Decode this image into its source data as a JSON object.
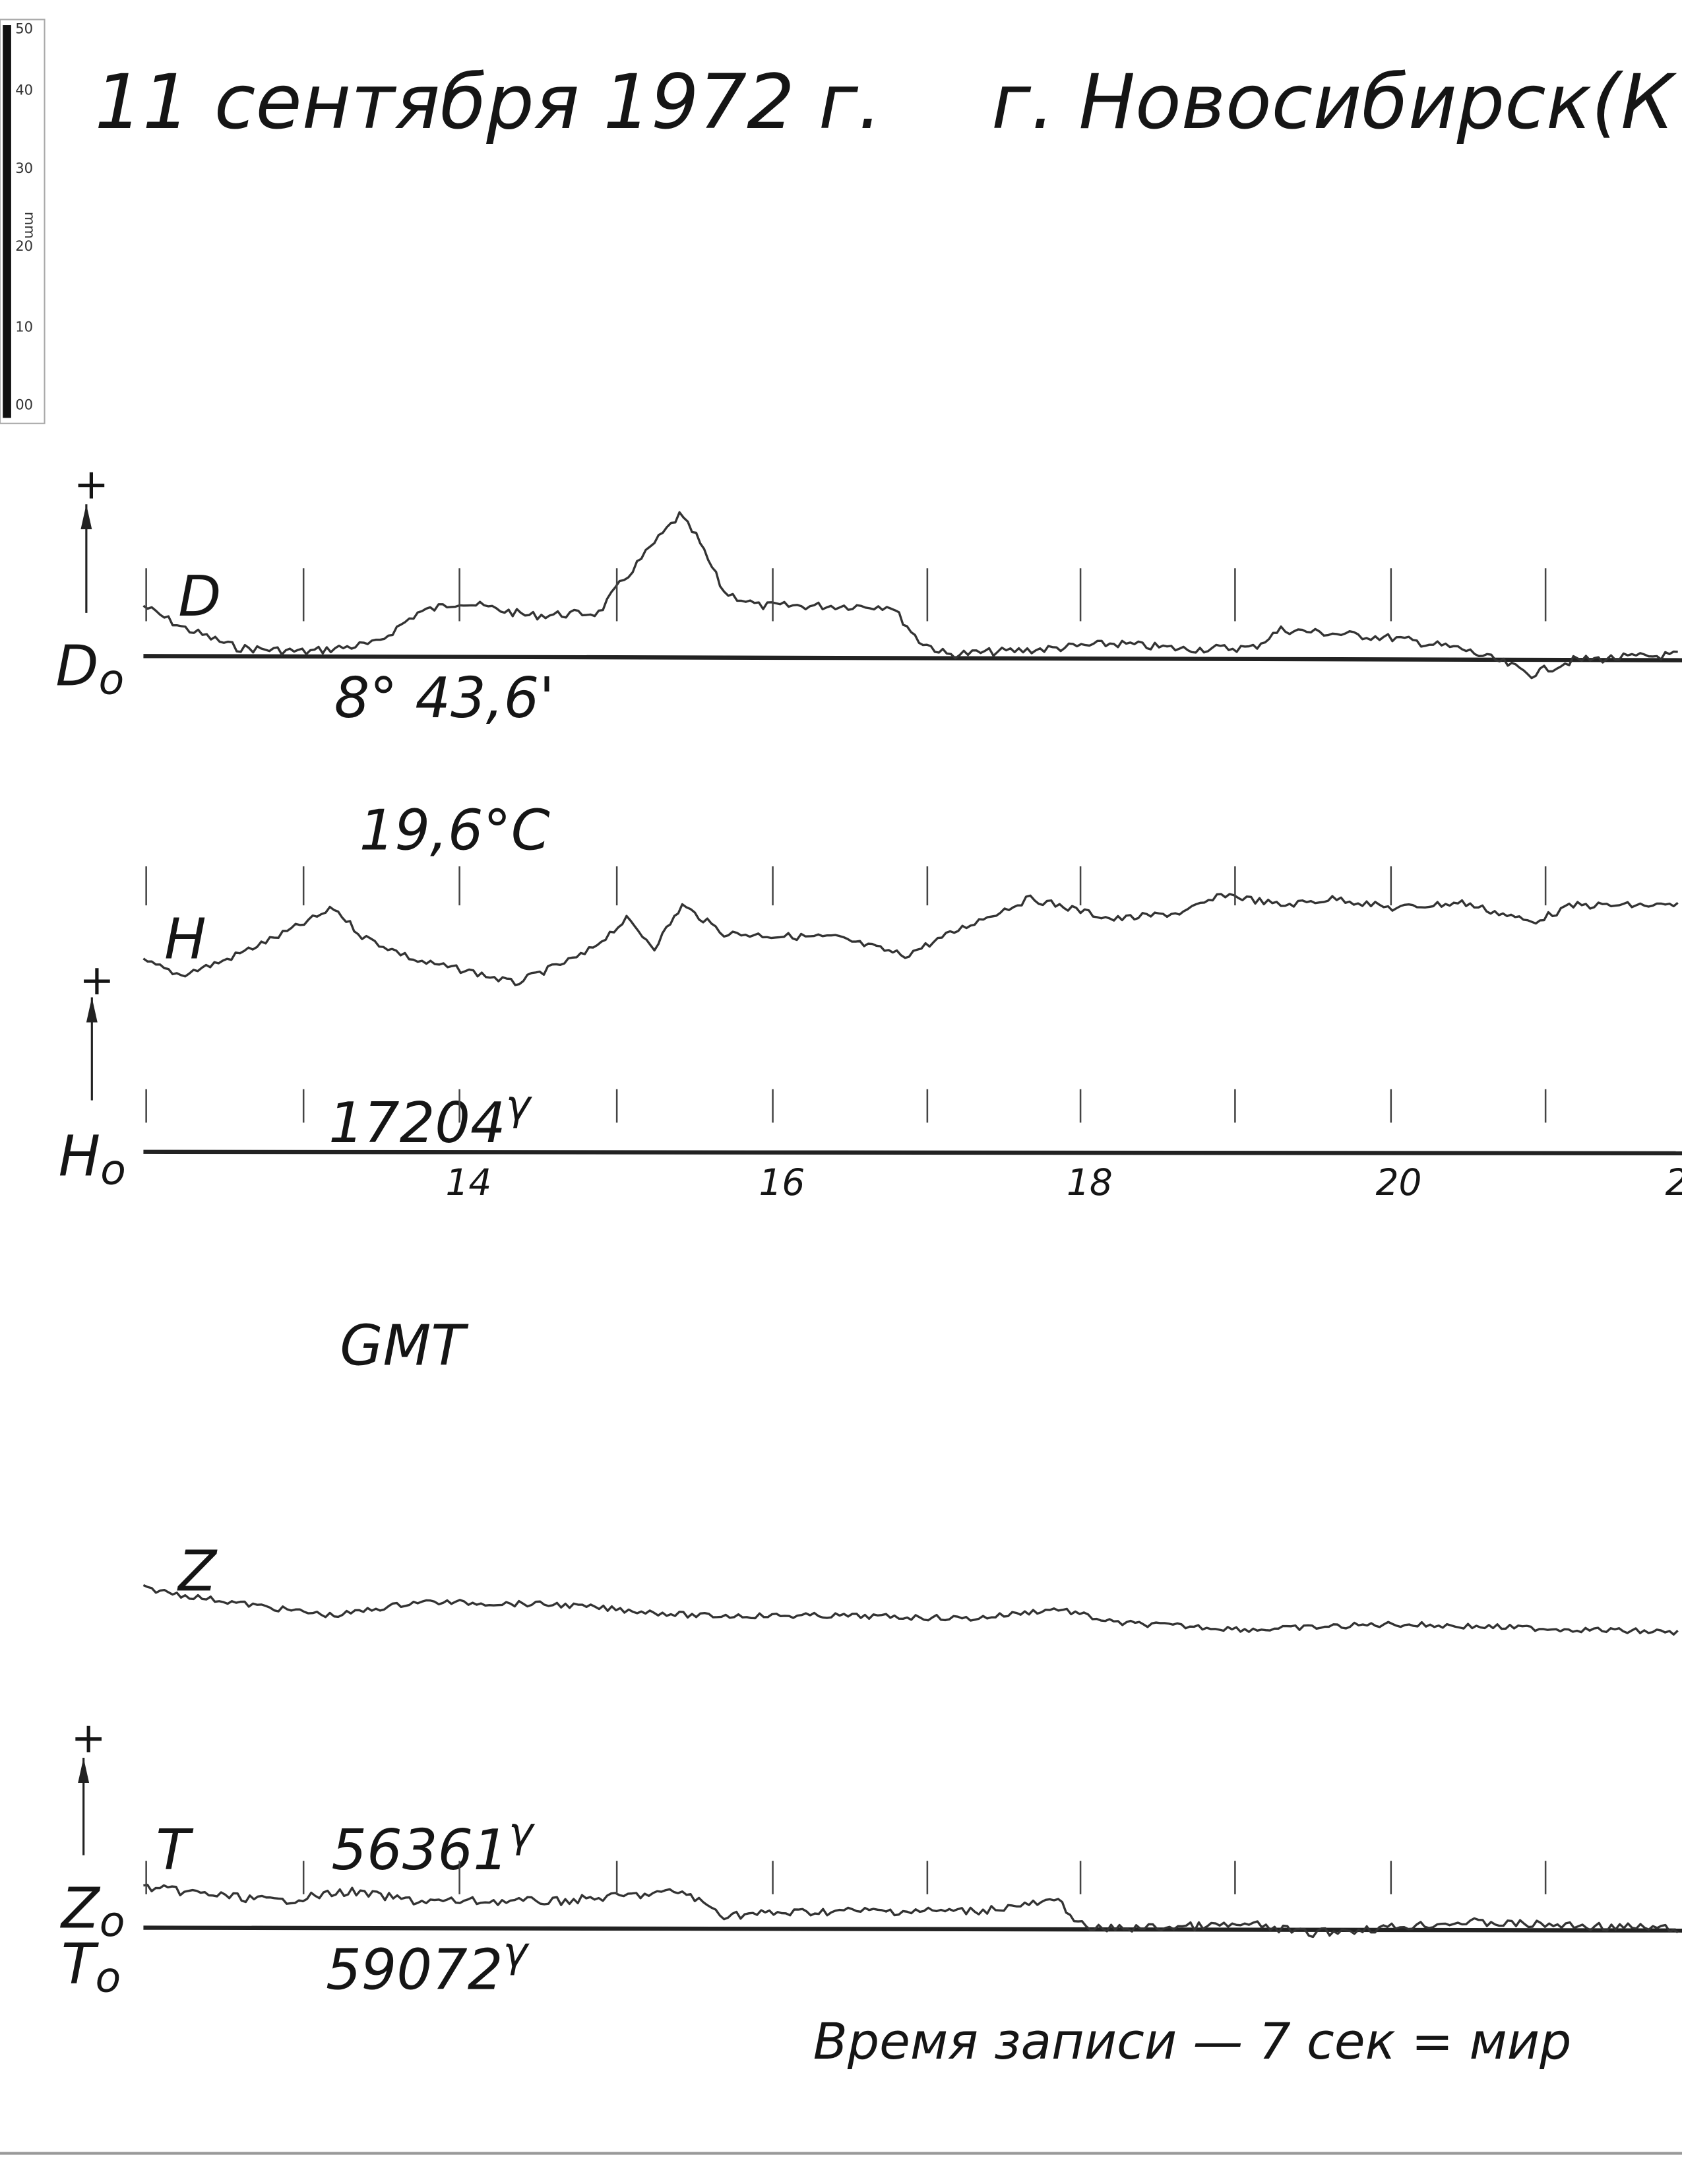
{
  "header": {
    "date": "11 сентября 1972 г.",
    "place": "г. Новосибирск(К"
  },
  "ruler": {
    "labels": [
      "50",
      "40",
      "30",
      "20",
      "10",
      "00"
    ],
    "unit": "mm"
  },
  "panels": {
    "D": {
      "sign": "+",
      "label": "D",
      "base": "D",
      "base_sub": "o",
      "value": "8° 43,6'"
    },
    "H": {
      "sign": "+",
      "label": "H",
      "base": "H",
      "base_sub": "o",
      "value": "17204",
      "value_sup": "γ",
      "temperature": "19,6°C"
    },
    "Z": {
      "sign": "+",
      "label": "Z",
      "base": "Z",
      "base_sub": "o",
      "value": "56361",
      "value_sup": "γ"
    },
    "T": {
      "label": "T",
      "base": "T",
      "base_sub": "o",
      "value": "59072",
      "value_sup": "γ"
    }
  },
  "time_axis": {
    "hours": [
      "14",
      "16",
      "18",
      "20",
      "2"
    ],
    "label": "GMT"
  },
  "footer": "Время записи — 7 сек = мир"
}
